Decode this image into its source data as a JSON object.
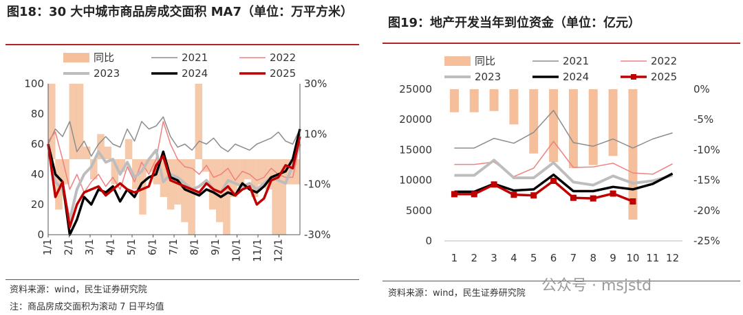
{
  "left": {
    "title": "图18：30 大中城市商品房成交面积 MA7（单位：万平方米）",
    "source": "资料来源：wind，民生证券研究院",
    "note": "注：商品房成交面积为滚动 7 日平均值"
  },
  "right": {
    "title": "图19：地产开发当年到位资金（单位：亿元）",
    "source": "资料来源：wind，民生证券研究院"
  },
  "watermark": "公众号 · msjstd",
  "chart_data": [
    {
      "type": "line",
      "title": "30 大中城市商品房成交面积 MA7（单位：万平方米）",
      "legend": [
        "同比",
        "2021",
        "2022",
        "2023",
        "2024",
        "2025"
      ],
      "x_ticks": [
        "1/1",
        "2/1",
        "3/1",
        "4/1",
        "5/1",
        "6/1",
        "7/1",
        "8/1",
        "9/1",
        "10/1",
        "11/1",
        "12/1"
      ],
      "ylim_left": [
        0,
        100
      ],
      "y_ticks_left": [
        "0",
        "20",
        "40",
        "60",
        "80",
        "100"
      ],
      "ylim_right": [
        -30,
        30
      ],
      "y_ticks_right": [
        "-30%",
        "-10%",
        "10%",
        "30%"
      ],
      "series": [
        {
          "name": "同比",
          "axis": "right",
          "kind": "area",
          "values": [
            30,
            -20,
            -10,
            30,
            30,
            5,
            -8,
            10,
            5,
            -10,
            -5,
            8,
            -12,
            -22,
            -5,
            -10,
            -15,
            -20,
            -18,
            -25,
            -30,
            30,
            -5,
            -20,
            -25,
            -30,
            -15,
            -10,
            -8,
            -15,
            -10,
            -12,
            -30,
            -30,
            -10,
            -10
          ]
        },
        {
          "name": "2021",
          "axis": "left",
          "values": [
            60,
            70,
            65,
            75,
            55,
            62,
            52,
            60,
            65,
            60,
            58,
            70,
            62,
            75,
            70,
            72,
            78,
            65,
            58,
            60,
            56,
            62,
            60,
            64,
            58,
            55,
            60,
            58,
            56,
            60,
            62,
            64,
            68,
            62,
            60,
            70
          ]
        },
        {
          "name": "2022",
          "axis": "left",
          "values": [
            62,
            68,
            50,
            30,
            40,
            28,
            35,
            40,
            32,
            38,
            30,
            45,
            35,
            48,
            40,
            50,
            75,
            60,
            50,
            45,
            44,
            40,
            46,
            38,
            40,
            44,
            36,
            42,
            40,
            36,
            38,
            44,
            40,
            38,
            38,
            60
          ]
        },
        {
          "name": "2023",
          "axis": "left",
          "values": [
            60,
            35,
            30,
            10,
            30,
            40,
            45,
            55,
            48,
            50,
            40,
            48,
            38,
            42,
            50,
            56,
            35,
            40,
            38,
            34,
            30,
            32,
            36,
            30,
            28,
            36,
            34,
            32,
            34,
            30,
            34,
            38,
            36,
            34,
            46,
            60
          ]
        },
        {
          "name": "2024",
          "axis": "left",
          "values": [
            60,
            40,
            35,
            0,
            10,
            25,
            20,
            30,
            28,
            32,
            22,
            30,
            25,
            34,
            38,
            40,
            55,
            38,
            36,
            30,
            28,
            26,
            30,
            28,
            25,
            28,
            26,
            34,
            30,
            28,
            32,
            38,
            40,
            42,
            50,
            70
          ]
        },
        {
          "name": "2025",
          "axis": "left",
          "values": [
            60,
            25,
            35,
            5,
            20,
            28,
            30,
            32,
            26,
            30,
            34,
            30,
            28,
            30,
            32,
            46,
            52,
            36,
            34,
            32,
            30,
            28,
            34,
            30,
            28,
            32,
            26,
            30,
            32,
            20,
            24,
            36,
            38,
            46,
            44,
            65
          ]
        }
      ]
    },
    {
      "type": "bar+line",
      "title": "地产开发当年到位资金（单位：亿元）",
      "legend": [
        "同比",
        "2021",
        "2022",
        "2023",
        "2024",
        "2025"
      ],
      "categories": [
        "1",
        "2",
        "3",
        "4",
        "5",
        "6",
        "7",
        "8",
        "9",
        "10",
        "11",
        "12"
      ],
      "ylim_left": [
        0,
        25000
      ],
      "y_ticks_left": [
        "0",
        "5000",
        "10000",
        "15000",
        "20000",
        "25000"
      ],
      "ylim_right": [
        -25,
        0
      ],
      "y_ticks_right": [
        "-25%",
        "-20%",
        "-15%",
        "-10%",
        "-5%",
        "0%"
      ],
      "series": [
        {
          "name": "同比",
          "axis": "right",
          "kind": "bar",
          "values": [
            -3.8,
            -3.8,
            -3.6,
            -5.8,
            -10.6,
            -12.0,
            -13.0,
            -12.5,
            -11.0,
            -21.5,
            null,
            null
          ]
        },
        {
          "name": "2021",
          "axis": "left",
          "values": [
            15300,
            15300,
            16900,
            16100,
            17900,
            21500,
            16200,
            15600,
            16800,
            15300,
            16800,
            17800
          ]
        },
        {
          "name": "2022",
          "axis": "left",
          "values": [
            12600,
            12600,
            13000,
            10600,
            12000,
            16400,
            12100,
            12200,
            12800,
            11200,
            11000,
            12700
          ]
        },
        {
          "name": "2023",
          "axis": "left",
          "values": [
            10800,
            10800,
            13300,
            10400,
            10400,
            12900,
            9700,
            9200,
            10700,
            9500,
            9900,
            10800
          ]
        },
        {
          "name": "2024",
          "axis": "left",
          "values": [
            8100,
            8100,
            9400,
            8300,
            8500,
            10900,
            8200,
            8200,
            8900,
            8500,
            9400,
            11100
          ]
        },
        {
          "name": "2025",
          "axis": "left",
          "values": [
            7700,
            7700,
            9300,
            7600,
            7500,
            9900,
            7100,
            7000,
            7800,
            6500,
            null,
            null
          ]
        }
      ]
    }
  ]
}
